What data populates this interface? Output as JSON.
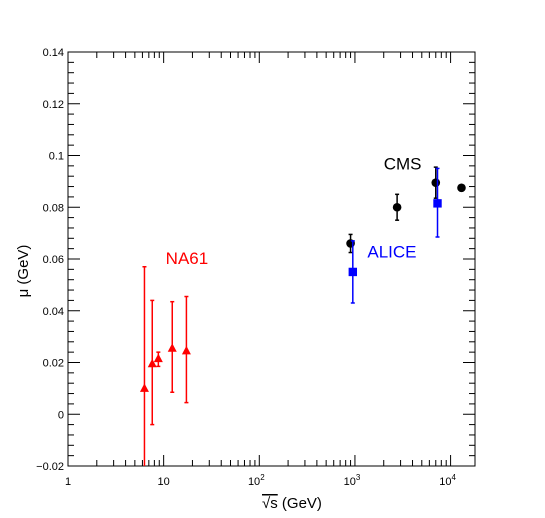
{
  "chart_data": {
    "type": "scatter",
    "xscale": "log",
    "xlim": [
      1,
      18000
    ],
    "ylim": [
      -0.02,
      0.14
    ],
    "xlabel_radical": "√s",
    "xlabel_unit": "(GeV)",
    "ylabel": "μ (GeV)",
    "xticks": [
      {
        "value": 1,
        "base": "1",
        "exp": ""
      },
      {
        "value": 10,
        "base": "10",
        "exp": ""
      },
      {
        "value": 100,
        "base": "10",
        "exp": "2"
      },
      {
        "value": 1000,
        "base": "10",
        "exp": "3"
      },
      {
        "value": 10000,
        "base": "10",
        "exp": "4"
      }
    ],
    "yticks": [
      {
        "value": -0.02,
        "label": "−0.02"
      },
      {
        "value": 0,
        "label": "0"
      },
      {
        "value": 0.02,
        "label": "0.02"
      },
      {
        "value": 0.04,
        "label": "0.04"
      },
      {
        "value": 0.06,
        "label": "0.06"
      },
      {
        "value": 0.08,
        "label": "0.08"
      },
      {
        "value": 0.1,
        "label": "0.1"
      },
      {
        "value": 0.12,
        "label": "0.12"
      },
      {
        "value": 0.14,
        "label": "0.14"
      }
    ],
    "series": [
      {
        "name": "NA61",
        "color": "#ff0000",
        "marker": "triangle",
        "label_at": [
          10.5,
          0.058
        ],
        "points": [
          {
            "x": 6.3,
            "y": 0.01,
            "lo": -0.02,
            "hi": 0.057
          },
          {
            "x": 7.6,
            "y": 0.0195,
            "lo": -0.004,
            "hi": 0.044
          },
          {
            "x": 8.8,
            "y": 0.0215,
            "lo": 0.0185,
            "hi": 0.024
          },
          {
            "x": 12.3,
            "y": 0.0255,
            "lo": 0.0085,
            "hi": 0.0435
          },
          {
            "x": 17.3,
            "y": 0.0245,
            "lo": 0.0045,
            "hi": 0.0455
          }
        ]
      },
      {
        "name": "CMS",
        "color": "#000000",
        "marker": "circle",
        "label_at": [
          2000,
          0.0945
        ],
        "points": [
          {
            "x": 900,
            "y": 0.066,
            "lo": 0.0625,
            "hi": 0.0695
          },
          {
            "x": 2760,
            "y": 0.08,
            "lo": 0.075,
            "hi": 0.085
          },
          {
            "x": 7000,
            "y": 0.0895,
            "lo": 0.0835,
            "hi": 0.0955
          },
          {
            "x": 13000,
            "y": 0.0875
          }
        ]
      },
      {
        "name": "ALICE",
        "color": "#0000ff",
        "marker": "square",
        "label_at": [
          1350,
          0.0605
        ],
        "points": [
          {
            "x": 950,
            "y": 0.055,
            "lo": 0.043,
            "hi": 0.067
          },
          {
            "x": 7300,
            "y": 0.0815,
            "lo": 0.0685,
            "hi": 0.095
          }
        ]
      }
    ]
  }
}
